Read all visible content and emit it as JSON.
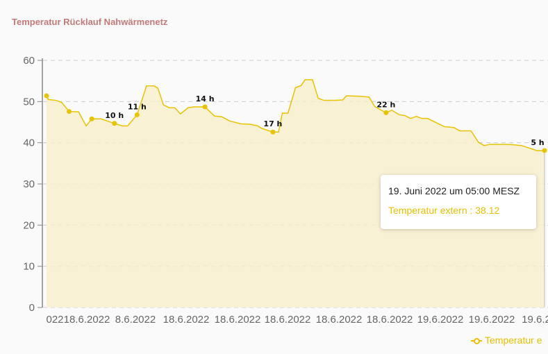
{
  "title": "Temperatur Rücklauf Nahwärmenetz",
  "colors": {
    "line": "#e8c300",
    "fill": "#f8eecb",
    "title": "#c47a78"
  },
  "tooltip": {
    "date": "19. Juni 2022 um 05:00 MESZ",
    "series_value": "Temperatur extern : 38.12"
  },
  "legend": {
    "label": "Temperatur e",
    "icon": "line-circle-marker-icon"
  },
  "chart_data": {
    "type": "area",
    "title": "Temperatur Rücklauf Nahwärmenetz",
    "ylim": [
      0,
      60
    ],
    "y_ticks": [
      0,
      10,
      20,
      30,
      40,
      50,
      60
    ],
    "x_tick_labels": [
      "022",
      "18.6.2022",
      "8.6.2022",
      "18.6.2022",
      "18.6.2022",
      "18.6.2022",
      "18.6.2022",
      "18.6.2022",
      "19.6.2022",
      "19.6.2022",
      "19.6.2"
    ],
    "grid": "horizontal dashed",
    "legend_position": "bottom-right",
    "series": [
      {
        "name": "Temperatur extern",
        "points": [
          [
            "18.6.2022 07:00",
            51.4
          ],
          [
            "18.6.2022 07:05",
            50.5
          ],
          [
            "18.6.2022 07:25",
            50.3
          ],
          [
            "18.6.2022 07:40",
            49.8
          ],
          [
            "18.6.2022 08:00",
            47.6
          ],
          [
            "18.6.2022 08:25",
            47.5
          ],
          [
            "18.6.2022 08:45",
            44.1
          ],
          [
            "18.6.2022 09:00",
            45.8
          ],
          [
            "18.6.2022 09:25",
            45.8
          ],
          [
            "18.6.2022 09:40",
            45.3
          ],
          [
            "18.6.2022 10:00",
            44.7
          ],
          [
            "18.6.2022 10:20",
            44.1
          ],
          [
            "18.6.2022 10:35",
            44.1
          ],
          [
            "18.6.2022 11:00",
            46.8
          ],
          [
            "18.6.2022 11:25",
            53.8
          ],
          [
            "18.6.2022 11:45",
            53.8
          ],
          [
            "18.6.2022 11:55",
            53.3
          ],
          [
            "18.6.2022 12:10",
            49.2
          ],
          [
            "18.6.2022 12:25",
            48.5
          ],
          [
            "18.6.2022 12:40",
            48.5
          ],
          [
            "18.6.2022 12:55",
            47.0
          ],
          [
            "18.6.2022 13:15",
            48.5
          ],
          [
            "18.6.2022 13:30",
            48.7
          ],
          [
            "18.6.2022 14:00",
            48.7
          ],
          [
            "18.6.2022 14:25",
            46.5
          ],
          [
            "18.6.2022 14:45",
            46.3
          ],
          [
            "18.6.2022 15:05",
            45.3
          ],
          [
            "18.6.2022 15:35",
            44.6
          ],
          [
            "18.6.2022 16:00",
            44.5
          ],
          [
            "18.6.2022 16:20",
            44.1
          ],
          [
            "18.6.2022 16:30",
            43.5
          ],
          [
            "18.6.2022 17:00",
            42.6
          ],
          [
            "18.6.2022 17:15",
            42.6
          ],
          [
            "18.6.2022 17:25",
            47.2
          ],
          [
            "18.6.2022 17:40",
            47.2
          ],
          [
            "18.6.2022 18:00",
            53.4
          ],
          [
            "18.6.2022 18:15",
            53.9
          ],
          [
            "18.6.2022 18:25",
            55.3
          ],
          [
            "18.6.2022 18:45",
            55.3
          ],
          [
            "18.6.2022 19:00",
            50.8
          ],
          [
            "18.6.2022 19:15",
            50.3
          ],
          [
            "18.6.2022 19:45",
            50.3
          ],
          [
            "18.6.2022 20:05",
            50.4
          ],
          [
            "18.6.2022 20:15",
            51.4
          ],
          [
            "18.6.2022 20:50",
            51.3
          ],
          [
            "18.6.2022 21:15",
            51.1
          ],
          [
            "18.6.2022 21:30",
            48.8
          ],
          [
            "18.6.2022 22:00",
            47.3
          ],
          [
            "18.6.2022 22:15",
            47.9
          ],
          [
            "18.6.2022 22:35",
            46.8
          ],
          [
            "18.6.2022 22:50",
            46.6
          ],
          [
            "18.6.2022 23:05",
            45.9
          ],
          [
            "18.6.2022 23:20",
            46.4
          ],
          [
            "18.6.2022 23:35",
            45.9
          ],
          [
            "18.6.2022 23:50",
            45.9
          ],
          [
            "19.6.2022 00:35",
            43.9
          ],
          [
            "19.6.2022 01:00",
            43.7
          ],
          [
            "19.6.2022 01:15",
            42.9
          ],
          [
            "19.6.2022 01:45",
            42.9
          ],
          [
            "19.6.2022 02:05",
            40.1
          ],
          [
            "19.6.2022 02:20",
            39.3
          ],
          [
            "19.6.2022 02:35",
            39.6
          ],
          [
            "19.6.2022 03:20",
            39.6
          ],
          [
            "19.6.2022 03:40",
            39.5
          ],
          [
            "19.6.2022 04:00",
            39.3
          ],
          [
            "19.6.2022 04:40",
            38.1
          ],
          [
            "19.6.2022 04:55",
            38.1
          ],
          [
            "19.6.2022 05:00",
            38.12
          ]
        ],
        "markers": [
          {
            "x": "18.6.2022 07:00",
            "y": 51.4,
            "label": ""
          },
          {
            "x": "18.6.2022 08:00",
            "y": 47.6,
            "label": ""
          },
          {
            "x": "18.6.2022 09:00",
            "y": 45.8,
            "label": ""
          },
          {
            "x": "18.6.2022 10:00",
            "y": 44.7,
            "label": "10 h"
          },
          {
            "x": "18.6.2022 11:00",
            "y": 46.8,
            "label": "11 h"
          },
          {
            "x": "18.6.2022 14:00",
            "y": 48.7,
            "label": "14 h"
          },
          {
            "x": "18.6.2022 17:00",
            "y": 42.6,
            "label": "17 h"
          },
          {
            "x": "18.6.2022 22:00",
            "y": 47.3,
            "label": "22 h"
          },
          {
            "x": "19.6.2022 05:00",
            "y": 38.12,
            "label": "5 h"
          }
        ]
      }
    ]
  }
}
